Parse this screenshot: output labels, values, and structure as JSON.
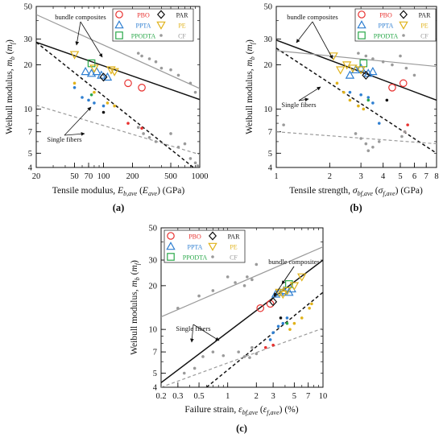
{
  "colors": {
    "PBO": "#e8312f",
    "PPTA": "#2f7fd1",
    "PPODTA": "#2aa84a",
    "PAR": "#111111",
    "PE": "#e0b21a",
    "CF": "#9a9a9a",
    "bundle_line_fiber": "#111111",
    "bundle_line_cf": "#9a9a9a"
  },
  "legend": {
    "PBO": "PBO",
    "PAR": "PAR",
    "PPTA": "PPTA",
    "PE": "PE",
    "PPODTA": "PPODTA",
    "CF": "CF"
  },
  "chart_data": [
    {
      "type": "scatter",
      "panel_label": "(a)",
      "xlabel": "Tensile modulus, E_{b,ave} (E_{ave}) (GPa)",
      "ylabel": "Weibull modulus, m_b (m_f)",
      "xscale": "log",
      "yscale": "log",
      "xlim": [
        20,
        1000
      ],
      "ylim": [
        4,
        50
      ],
      "xticks": [
        20,
        50,
        70,
        100,
        200,
        500,
        1000
      ],
      "yticks": [
        4,
        5,
        7,
        10,
        20,
        30,
        50
      ],
      "annotations": [
        "bundle composites",
        "Single fibers"
      ],
      "series": [
        {
          "name": "PBO",
          "kind": "bundle",
          "marker": "circle",
          "points": [
            [
              180,
              15
            ],
            [
              250,
              14
            ]
          ]
        },
        {
          "name": "PBO",
          "kind": "fiber",
          "marker": "dot",
          "points": [
            [
              180,
              8
            ],
            [
              250,
              7.4
            ]
          ]
        },
        {
          "name": "PPTA",
          "kind": "bundle",
          "marker": "triangle",
          "points": [
            [
              65,
              18
            ],
            [
              75,
              17.5
            ],
            [
              85,
              18
            ],
            [
              95,
              17
            ],
            [
              110,
              16.5
            ]
          ]
        },
        {
          "name": "PPTA",
          "kind": "fiber",
          "marker": "dot",
          "points": [
            [
              50,
              14
            ],
            [
              60,
              12
            ],
            [
              70,
              11.5
            ],
            [
              80,
              11
            ],
            [
              100,
              10.5
            ]
          ]
        },
        {
          "name": "PPODTA",
          "kind": "bundle",
          "marker": "square",
          "points": [
            [
              75,
              20.5
            ]
          ]
        },
        {
          "name": "PPODTA",
          "kind": "fiber",
          "marker": "dot",
          "points": [
            [
              75,
              12.5
            ]
          ]
        },
        {
          "name": "PAR",
          "kind": "bundle",
          "marker": "diamond",
          "points": [
            [
              100,
              16.5
            ]
          ]
        },
        {
          "name": "PAR",
          "kind": "fiber",
          "marker": "dot",
          "points": [
            [
              100,
              9.5
            ]
          ]
        },
        {
          "name": "PE",
          "kind": "bundle",
          "marker": "triangle-down",
          "points": [
            [
              50,
              23.5
            ],
            [
              80,
              19
            ],
            [
              120,
              18.5
            ],
            [
              130,
              18
            ]
          ]
        },
        {
          "name": "PE",
          "kind": "fiber",
          "marker": "dot",
          "points": [
            [
              50,
              15
            ],
            [
              80,
              13
            ],
            [
              110,
              11
            ],
            [
              130,
              10.5
            ]
          ]
        },
        {
          "name": "CF",
          "kind": "bundle",
          "marker": "dot",
          "points": [
            [
              230,
              24
            ],
            [
              250,
              23
            ],
            [
              300,
              22
            ],
            [
              350,
              21
            ],
            [
              400,
              19
            ],
            [
              500,
              18.5
            ],
            [
              600,
              17
            ],
            [
              800,
              15
            ],
            [
              900,
              13
            ]
          ]
        },
        {
          "name": "CF",
          "kind": "fiber",
          "marker": "dot",
          "points": [
            [
              230,
              7.5
            ],
            [
              260,
              6.8
            ],
            [
              300,
              6.4
            ],
            [
              350,
              6
            ],
            [
              500,
              6.8
            ],
            [
              600,
              5.5
            ],
            [
              700,
              5.8
            ],
            [
              800,
              4.6
            ],
            [
              900,
              4.3
            ],
            [
              950,
              4.1
            ]
          ]
        }
      ],
      "fit_lines": [
        {
          "group": "fiber bundle composites",
          "style": "solid",
          "color": "#111111",
          "from": [
            20,
            28.5
          ],
          "to": [
            1000,
            11.6
          ]
        },
        {
          "group": "fiber single fibers",
          "style": "dashed",
          "color": "#111111",
          "from": [
            20,
            28.5
          ],
          "to": [
            860,
            4
          ]
        },
        {
          "group": "CF bundle composites",
          "style": "solid",
          "color": "#9a9a9a",
          "from": [
            20,
            44
          ],
          "to": [
            1000,
            13.8
          ]
        },
        {
          "group": "CF single fibers",
          "style": "dashed",
          "color": "#9a9a9a",
          "from": [
            20,
            10.6
          ],
          "to": [
            1000,
            4.9
          ]
        }
      ]
    },
    {
      "type": "scatter",
      "panel_label": "(b)",
      "xlabel": "Tensile strength, σ_{bf,ave} (σ_{f,ave}) (GPa)",
      "ylabel": "Weibull modulus, m_b (m_f)",
      "xscale": "log",
      "yscale": "log",
      "xlim": [
        1,
        8
      ],
      "ylim": [
        4,
        50
      ],
      "xticks": [
        1,
        2,
        3,
        4,
        5,
        6,
        7,
        8
      ],
      "yticks": [
        4,
        5,
        7,
        10,
        20,
        30,
        50
      ],
      "annotations": [
        "bundle composites",
        "Single fibers"
      ],
      "series": [
        {
          "name": "PBO",
          "kind": "bundle",
          "marker": "circle",
          "points": [
            [
              4.5,
              14
            ],
            [
              5.2,
              15
            ]
          ]
        },
        {
          "name": "PBO",
          "kind": "fiber",
          "marker": "dot",
          "points": [
            [
              5.5,
              7.8
            ],
            [
              5.3,
              7
            ]
          ]
        },
        {
          "name": "PPTA",
          "kind": "bundle",
          "marker": "triangle",
          "points": [
            [
              2.6,
              17
            ],
            [
              2.8,
              18.5
            ],
            [
              3.0,
              19
            ],
            [
              3.3,
              17.5
            ],
            [
              3.5,
              18
            ]
          ]
        },
        {
          "name": "PPTA",
          "kind": "fiber",
          "marker": "dot",
          "points": [
            [
              2.6,
              13
            ],
            [
              3.0,
              12.5
            ],
            [
              3.3,
              12
            ],
            [
              3.5,
              11
            ],
            [
              3.8,
              8
            ]
          ]
        },
        {
          "name": "PPODTA",
          "kind": "bundle",
          "marker": "square",
          "points": [
            [
              3.1,
              20.5
            ]
          ]
        },
        {
          "name": "PPODTA",
          "kind": "fiber",
          "marker": "dot",
          "points": [
            [
              3.3,
              11.5
            ]
          ]
        },
        {
          "name": "PAR",
          "kind": "bundle",
          "marker": "diamond",
          "points": [
            [
              3.2,
              17
            ]
          ]
        },
        {
          "name": "PAR",
          "kind": "fiber",
          "marker": "dot",
          "points": [
            [
              4.2,
              11.5
            ]
          ]
        },
        {
          "name": "PE",
          "kind": "bundle",
          "marker": "triangle-down",
          "points": [
            [
              2.1,
              23
            ],
            [
              2.3,
              18.5
            ],
            [
              2.5,
              20
            ],
            [
              2.7,
              19
            ],
            [
              3.0,
              18.5
            ]
          ]
        },
        {
          "name": "PE",
          "kind": "fiber",
          "marker": "dot",
          "points": [
            [
              2.2,
              15
            ],
            [
              2.4,
              13
            ],
            [
              2.6,
              11.5
            ],
            [
              2.9,
              10.5
            ],
            [
              3.1,
              10
            ]
          ]
        },
        {
          "name": "CF",
          "kind": "bundle",
          "marker": "dot",
          "points": [
            [
              2.9,
              24
            ],
            [
              3.2,
              23
            ],
            [
              3.5,
              22
            ],
            [
              4.0,
              21
            ],
            [
              4.5,
              20
            ],
            [
              5.0,
              23
            ],
            [
              5.4,
              19
            ],
            [
              6.0,
              17
            ]
          ]
        },
        {
          "name": "CF",
          "kind": "fiber",
          "marker": "dot",
          "points": [
            [
              1.1,
              7.8
            ],
            [
              2.8,
              6.8
            ],
            [
              3.0,
              6.3
            ],
            [
              3.2,
              5.8
            ],
            [
              3.3,
              5.2
            ],
            [
              3.5,
              5.5
            ],
            [
              3.8,
              6
            ],
            [
              5.1,
              6.5
            ],
            [
              5.3,
              7
            ]
          ]
        }
      ],
      "fit_lines": [
        {
          "group": "fiber bundle composites",
          "style": "solid",
          "color": "#111111",
          "from": [
            1,
            29.5
          ],
          "to": [
            8,
            11.5
          ]
        },
        {
          "group": "fiber single fibers",
          "style": "dashed",
          "color": "#111111",
          "from": [
            1,
            26
          ],
          "to": [
            8,
            5
          ]
        },
        {
          "group": "CF bundle composites",
          "style": "solid",
          "color": "#9a9a9a",
          "from": [
            1,
            25
          ],
          "to": [
            8,
            19.5
          ]
        },
        {
          "group": "CF single fibers",
          "style": "dashed",
          "color": "#9a9a9a",
          "from": [
            1,
            7
          ],
          "to": [
            8,
            5.8
          ]
        }
      ]
    },
    {
      "type": "scatter",
      "panel_label": "(c)",
      "xlabel": "Failure strain, ε_{bf,ave} (ε_{f,ave}) (%)",
      "ylabel": "Weibull modulus, m_b (m_f)",
      "xscale": "log",
      "yscale": "log",
      "xlim": [
        0.2,
        10
      ],
      "ylim": [
        4,
        50
      ],
      "xticks": [
        0.2,
        0.3,
        0.5,
        1,
        2,
        3,
        5,
        7,
        10
      ],
      "yticks": [
        4,
        5,
        7,
        10,
        20,
        30,
        50
      ],
      "annotations": [
        "bundle composites",
        "Single fibers"
      ],
      "series": [
        {
          "name": "PBO",
          "kind": "bundle",
          "marker": "circle",
          "points": [
            [
              2.2,
              14
            ],
            [
              2.8,
              15
            ]
          ]
        },
        {
          "name": "PBO",
          "kind": "fiber",
          "marker": "dot",
          "points": [
            [
              2.5,
              7.5
            ],
            [
              3.0,
              7.8
            ]
          ]
        },
        {
          "name": "PPTA",
          "kind": "bundle",
          "marker": "triangle",
          "points": [
            [
              3.2,
              17.5
            ],
            [
              3.5,
              18
            ],
            [
              3.9,
              18.5
            ],
            [
              4.4,
              18
            ],
            [
              4.7,
              19
            ]
          ]
        },
        {
          "name": "PPTA",
          "kind": "fiber",
          "marker": "dot",
          "points": [
            [
              2.8,
              8.5
            ],
            [
              3.0,
              9.5
            ],
            [
              3.4,
              10.5
            ],
            [
              3.8,
              11
            ],
            [
              4.2,
              12
            ]
          ]
        },
        {
          "name": "PPODTA",
          "kind": "bundle",
          "marker": "square",
          "points": [
            [
              4.4,
              20.5
            ]
          ]
        },
        {
          "name": "PPODTA",
          "kind": "fiber",
          "marker": "dot",
          "points": [
            [
              4.2,
              11
            ]
          ]
        },
        {
          "name": "PAR",
          "kind": "bundle",
          "marker": "diamond",
          "points": [
            [
              3.0,
              15.5
            ]
          ]
        },
        {
          "name": "PAR",
          "kind": "fiber",
          "marker": "dot",
          "points": [
            [
              3.6,
              12
            ]
          ]
        },
        {
          "name": "PE",
          "kind": "bundle",
          "marker": "triangle-down",
          "points": [
            [
              3.5,
              18
            ],
            [
              3.8,
              17.5
            ],
            [
              4.2,
              18.5
            ],
            [
              5.0,
              20
            ],
            [
              6.0,
              23
            ]
          ]
        },
        {
          "name": "PE",
          "kind": "fiber",
          "marker": "dot",
          "points": [
            [
              4.5,
              10
            ],
            [
              5.0,
              11
            ],
            [
              6.0,
              12
            ],
            [
              7.2,
              14
            ],
            [
              7.6,
              15
            ]
          ]
        },
        {
          "name": "CF",
          "kind": "bundle",
          "marker": "dot",
          "points": [
            [
              0.3,
              14
            ],
            [
              0.5,
              17
            ],
            [
              0.7,
              18.5
            ],
            [
              1.0,
              23
            ],
            [
              1.2,
              21
            ],
            [
              1.5,
              20
            ],
            [
              1.6,
              23
            ],
            [
              1.8,
              22
            ],
            [
              2.0,
              28
            ]
          ]
        },
        {
          "name": "CF",
          "kind": "fiber",
          "marker": "dot",
          "points": [
            [
              0.35,
              5
            ],
            [
              0.45,
              5.4
            ],
            [
              0.55,
              6.5
            ],
            [
              0.7,
              7
            ],
            [
              0.9,
              6.6
            ],
            [
              1.3,
              7
            ],
            [
              1.5,
              6.5
            ],
            [
              1.7,
              6.4
            ],
            [
              1.8,
              7.5
            ],
            [
              2.0,
              6.8
            ]
          ]
        }
      ],
      "fit_lines": [
        {
          "group": "fiber bundle composites",
          "style": "solid",
          "color": "#111111",
          "from": [
            0.2,
            4.3
          ],
          "to": [
            10,
            30
          ]
        },
        {
          "group": "fiber single fibers",
          "style": "dashed",
          "color": "#111111",
          "from": [
            0.6,
            4
          ],
          "to": [
            10,
            18
          ]
        },
        {
          "group": "CF bundle composites",
          "style": "solid",
          "color": "#9a9a9a",
          "from": [
            0.2,
            12.2
          ],
          "to": [
            10,
            37
          ]
        },
        {
          "group": "CF single fibers",
          "style": "dashed",
          "color": "#9a9a9a",
          "from": [
            0.2,
            4
          ],
          "to": [
            10,
            10.2
          ]
        }
      ]
    }
  ]
}
